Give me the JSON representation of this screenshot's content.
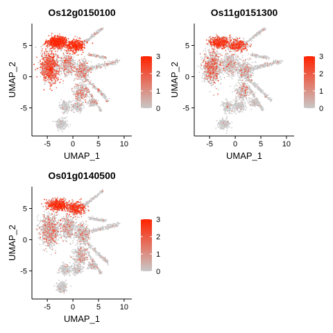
{
  "chart_data": [
    {
      "type": "scatter",
      "title": "Os12g0150100",
      "xlabel": "UMAP_1",
      "ylabel": "UMAP_2",
      "xlim": [
        -8,
        11.5
      ],
      "ylim": [
        -9.5,
        8.5
      ],
      "xticks": [
        -5,
        0,
        5,
        10
      ],
      "yticks": [
        -5,
        0,
        5
      ],
      "color_scale": {
        "min": 0,
        "max": 3,
        "ticks": [
          0,
          1,
          2,
          3
        ],
        "low": "#C8C8C8",
        "high": "#FF2200"
      },
      "expression_bias": {
        "upper_left": 2.2,
        "left_mid": 1.6,
        "center": 0.9,
        "right_branches": 0.5,
        "bottom": 0.2
      },
      "series": [
        {
          "x": [
            -4.5,
            -3.0,
            -1.5,
            -0.5,
            1.0,
            2.5,
            5.0,
            8.0,
            -2.0,
            0.5
          ],
          "y": [
            5.5,
            6.0,
            4.5,
            2.0,
            0.5,
            -2.0,
            -4.5,
            2.5,
            -7.5,
            7.5
          ],
          "values": [
            2.6,
            2.8,
            2.2,
            1.5,
            1.1,
            0.7,
            0.3,
            0.4,
            0.1,
            0.2
          ]
        }
      ]
    },
    {
      "type": "scatter",
      "title": "Os11g0151300",
      "xlabel": "UMAP_1",
      "ylabel": "UMAP_2",
      "xlim": [
        -8,
        11.5
      ],
      "ylim": [
        -9.5,
        8.5
      ],
      "xticks": [
        -5,
        0,
        5,
        10
      ],
      "yticks": [
        -5,
        0,
        5
      ],
      "color_scale": {
        "min": 0,
        "max": 3,
        "ticks": [
          0,
          1,
          2,
          3
        ],
        "low": "#C8C8C8",
        "high": "#FF2200"
      },
      "expression_bias": {
        "upper_left": 1.8,
        "left_mid": 1.0,
        "center": 0.6,
        "right_branches": 0.3,
        "bottom": 0.15
      },
      "series": [
        {
          "x": [
            -4.5,
            -3.0,
            -1.5,
            -0.5,
            1.0,
            2.5,
            5.0,
            8.0,
            -2.0,
            0.5
          ],
          "y": [
            5.5,
            6.0,
            4.5,
            2.0,
            0.5,
            -2.0,
            -4.5,
            2.5,
            -7.5,
            7.5
          ],
          "values": [
            2.2,
            2.4,
            1.6,
            0.9,
            0.7,
            0.4,
            0.2,
            0.3,
            0.1,
            0.1
          ]
        }
      ]
    },
    {
      "type": "scatter",
      "title": "Os01g0140500",
      "xlabel": "UMAP_1",
      "ylabel": "UMAP_2",
      "xlim": [
        -8,
        11.5
      ],
      "ylim": [
        -9.5,
        8.5
      ],
      "xticks": [
        -5,
        0,
        5,
        10
      ],
      "yticks": [
        -5,
        0,
        5
      ],
      "color_scale": {
        "min": 0,
        "max": 3,
        "ticks": [
          0,
          1,
          2,
          3
        ],
        "low": "#C8C8C8",
        "high": "#FF2200"
      },
      "expression_bias": {
        "upper_left": 1.9,
        "left_mid": 0.9,
        "center": 0.7,
        "right_branches": 0.3,
        "bottom": 0.15
      },
      "series": [
        {
          "x": [
            -4.5,
            -3.0,
            -1.5,
            -0.5,
            1.0,
            2.5,
            5.0,
            8.0,
            -2.0,
            0.5
          ],
          "y": [
            5.5,
            6.0,
            4.5,
            2.0,
            0.5,
            -2.0,
            -4.5,
            2.5,
            -7.5,
            7.5
          ],
          "values": [
            2.3,
            2.5,
            1.7,
            0.9,
            0.8,
            0.5,
            0.2,
            0.3,
            0.1,
            0.1
          ]
        }
      ]
    }
  ]
}
